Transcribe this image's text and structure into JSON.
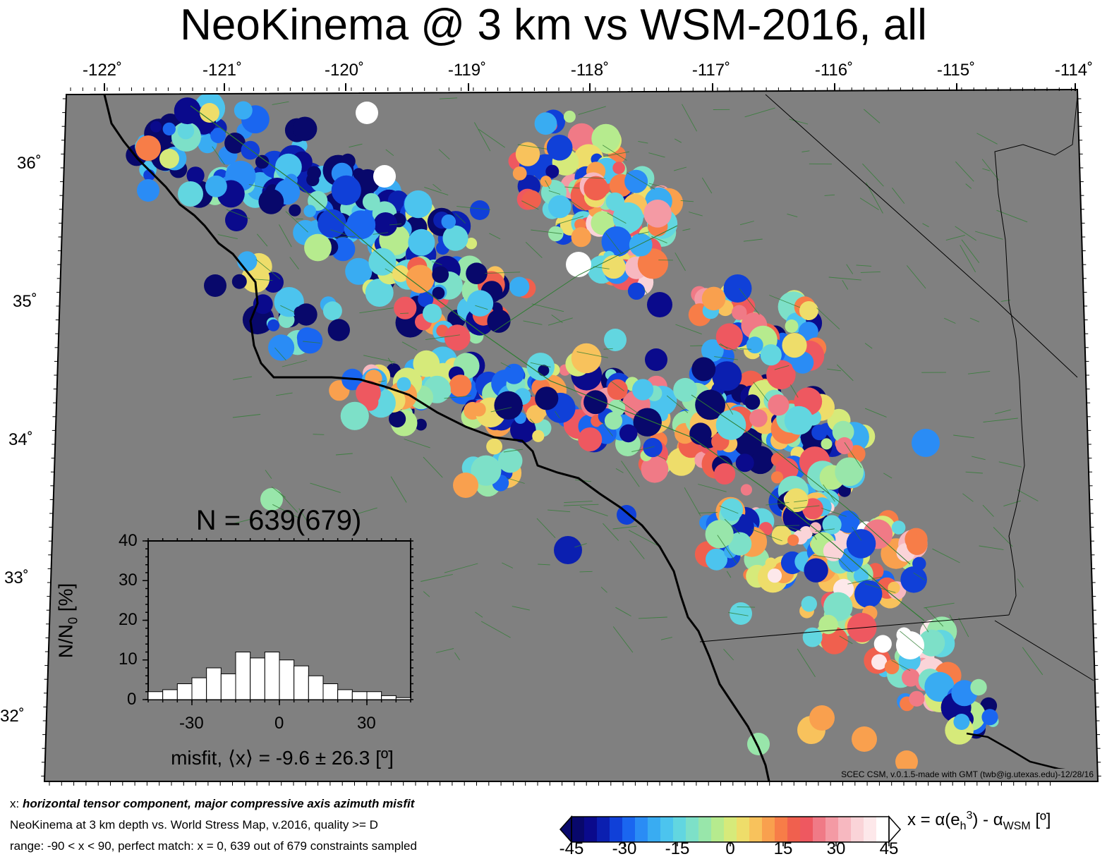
{
  "title": "NeoKinema @ 3 km vs WSM-2016, all",
  "map": {
    "background_color": "#808080",
    "longitude_labels": [
      "-122˚",
      "-121˚",
      "-120˚",
      "-119˚",
      "-118˚",
      "-117˚",
      "-116˚",
      "-115˚",
      "-114˚"
    ],
    "latitude_labels": [
      "36˚",
      "35˚",
      "34˚",
      "33˚",
      "32˚"
    ],
    "credit": "SCEC CSM, v.0.1.5-made with GMT (twb@ig.utexas.edu)-12/28/16",
    "coastline_color": "#000000",
    "fault_color": "#2e7d32"
  },
  "histogram": {
    "title": "N = 639(679)",
    "ylabel": "N/N",
    "ylabel_sub": "0",
    "ylabel_unit": " [%]",
    "xlabel": "misfit, ⟨x⟩ = -9.6 ± 26.3 [º]",
    "y_ticks": [
      "0",
      "10",
      "20",
      "30",
      "40"
    ],
    "x_ticks": [
      "-30",
      "0",
      "30"
    ]
  },
  "chart_data": {
    "type": "bar",
    "title": "N = 639(679)",
    "xlabel": "misfit, ⟨x⟩ = -9.6 ± 26.3 [º]",
    "ylabel": "N/N0 [%]",
    "xlim": [
      -45,
      45
    ],
    "ylim": [
      0,
      40
    ],
    "bin_width": 5,
    "bin_centers": [
      -42.5,
      -37.5,
      -32.5,
      -27.5,
      -22.5,
      -17.5,
      -12.5,
      -7.5,
      -2.5,
      2.5,
      7.5,
      12.5,
      17.5,
      22.5,
      27.5,
      32.5,
      37.5,
      42.5
    ],
    "values": [
      2.0,
      2.5,
      4.0,
      5.5,
      8.0,
      6.5,
      12.0,
      10.5,
      12.0,
      10.0,
      8.5,
      6.0,
      4.0,
      2.5,
      2.0,
      2.0,
      1.0,
      0.5
    ]
  },
  "notes": {
    "line1_prefix": "x: ",
    "line1_text": "horizontal tensor component, major compressive axis azimuth misfit",
    "line2": "NeoKinema at 3 km depth vs.  World Stress Map, v.2016, quality >= D",
    "line3": "range: -90 < x < 90, perfect match: x = 0, 639 out of 679 constraints sampled"
  },
  "colorbar": {
    "label": "x = α(e",
    "label_sub": "h",
    "label_sup": "3",
    "label_tail": ") - α",
    "label_sub2": "WSM",
    "label_unit": " [º]",
    "ticks": [
      "-45",
      "-30",
      "-15",
      "0",
      "15",
      "30",
      "45"
    ],
    "colors": [
      "#08086b",
      "#0a0a8c",
      "#0b1fb0",
      "#1040d8",
      "#1a66f0",
      "#2a8cf5",
      "#39acf2",
      "#4cc4ee",
      "#62d6e0",
      "#7de0c8",
      "#98e6aa",
      "#b6eb8e",
      "#d6ea7a",
      "#eedd6a",
      "#f8c25c",
      "#f9a04e",
      "#f77d48",
      "#f0604e",
      "#ee5860",
      "#f07a86",
      "#f49aa4",
      "#f7b8c0",
      "#fad4d8",
      "#fde8ea",
      "#ffffff"
    ]
  }
}
